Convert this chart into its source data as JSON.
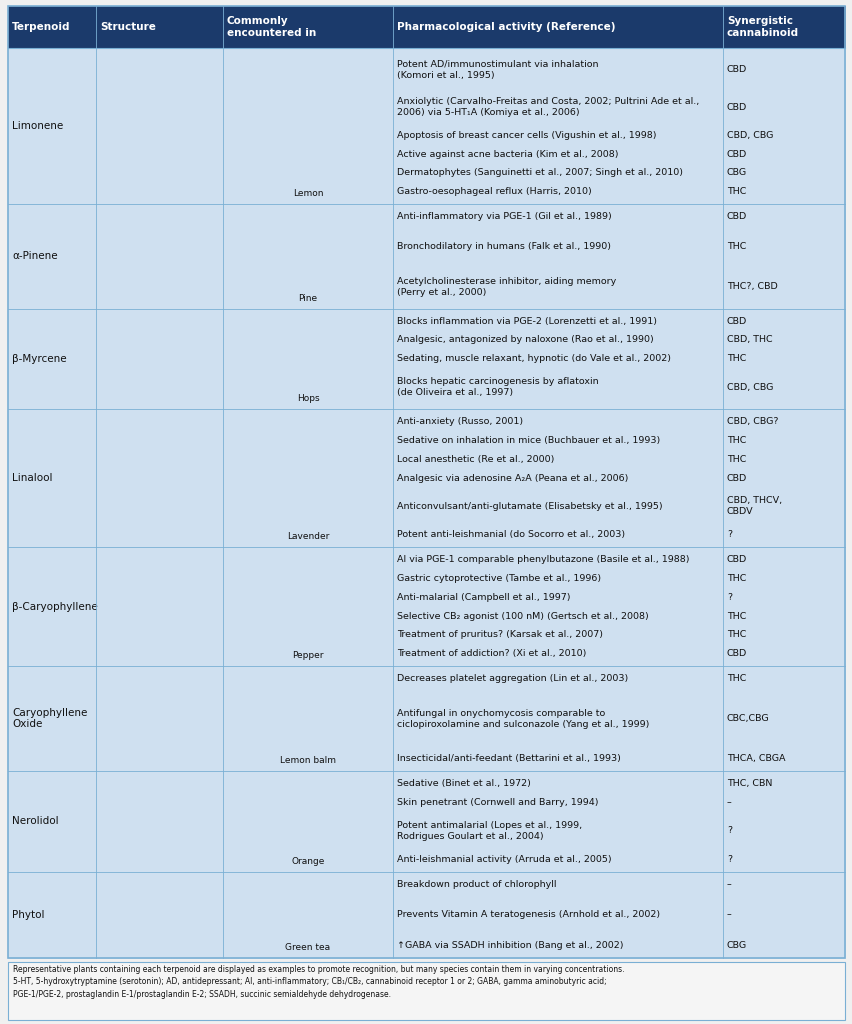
{
  "header_bg": "#1b3a6b",
  "header_text_color": "#ffffff",
  "body_bg": "#cfe0f0",
  "body_text_color": "#111111",
  "border_color": "#7aafd4",
  "footer_bg": "#f5f5f5",
  "headers": [
    "Terpenoid",
    "Structure",
    "Commonly\nencountered in",
    "Pharmacological activity (Reference)",
    "Synergistic\ncannabinoid"
  ],
  "rows": [
    {
      "terpenoid": "Limonene",
      "plant": "Lemon",
      "activities": [
        [
          "Potent AD/immunostimulant via inhalation\n(Komori et al., 1995)",
          "CBD"
        ],
        [
          "Anxiolytic (Carvalho-Freitas and Costa, 2002; Pultrini Ade et al.,\n2006) via 5-HT₁A (Komiya et al., 2006)",
          "CBD"
        ],
        [
          "Apoptosis of breast cancer cells (Vigushin et al., 1998)",
          "CBD, CBG"
        ],
        [
          "Active against acne bacteria (Kim et al., 2008)",
          "CBD"
        ],
        [
          "Dermatophytes (Sanguinetti et al., 2007; Singh et al., 2010)",
          "CBG"
        ],
        [
          "Gastro-oesophageal reflux (Harris, 2010)",
          "THC"
        ]
      ]
    },
    {
      "terpenoid": "α-Pinene",
      "plant": "Pine",
      "activities": [
        [
          "Anti-inflammatory via PGE-1 (Gil et al., 1989)",
          "CBD"
        ],
        [
          "",
          ""
        ],
        [
          "Bronchodilatory in humans (Falk et al., 1990)",
          "THC"
        ],
        [
          "",
          ""
        ],
        [
          "Acetylcholinesterase inhibitor, aiding memory\n(Perry et al., 2000)",
          "THC?, CBD"
        ]
      ]
    },
    {
      "terpenoid": "β-Myrcene",
      "plant": "Hops",
      "activities": [
        [
          "Blocks inflammation via PGE-2 (Lorenzetti et al., 1991)",
          "CBD"
        ],
        [
          "Analgesic, antagonized by naloxone (Rao et al., 1990)",
          "CBD, THC"
        ],
        [
          "Sedating, muscle relaxant, hypnotic (do Vale et al., 2002)",
          "THC"
        ],
        [
          "Blocks hepatic carcinogenesis by aflatoxin\n(de Oliveira et al., 1997)",
          "CBD, CBG"
        ]
      ]
    },
    {
      "terpenoid": "Linalool",
      "plant": "Lavender",
      "activities": [
        [
          "Anti-anxiety (Russo, 2001)",
          "CBD, CBG?"
        ],
        [
          "Sedative on inhalation in mice (Buchbauer et al., 1993)",
          "THC"
        ],
        [
          "Local anesthetic (Re et al., 2000)",
          "THC"
        ],
        [
          "Analgesic via adenosine A₂A (Peana et al., 2006)",
          "CBD"
        ],
        [
          "Anticonvulsant/anti-glutamate (Elisabetsky et al., 1995)",
          "CBD, THCV,\nCBDV"
        ],
        [
          "Potent anti-leishmanial (do Socorro et al., 2003)",
          "?"
        ]
      ]
    },
    {
      "terpenoid": "β-Caryophyllene",
      "plant": "Pepper",
      "activities": [
        [
          "AI via PGE-1 comparable phenylbutazone (Basile et al., 1988)",
          "CBD"
        ],
        [
          "Gastric cytoprotective (Tambe et al., 1996)",
          "THC"
        ],
        [
          "Anti-malarial (Campbell et al., 1997)",
          "?"
        ],
        [
          "Selective CB₂ agonist (100 nM) (Gertsch et al., 2008)",
          "THC"
        ],
        [
          "Treatment of pruritus? (Karsak et al., 2007)",
          "THC"
        ],
        [
          "Treatment of addiction? (Xi et al., 2010)",
          "CBD"
        ]
      ]
    },
    {
      "terpenoid": "Caryophyllene\nOxide",
      "plant": "Lemon balm",
      "activities": [
        [
          "Decreases platelet aggregation (Lin et al., 2003)",
          "THC"
        ],
        [
          "",
          ""
        ],
        [
          "Antifungal in onychomycosis comparable to\nciclopiroxolamine and sulconazole (Yang et al., 1999)",
          "CBC,CBG"
        ],
        [
          "",
          ""
        ],
        [
          "Insecticidal/anti-feedant (Bettarini et al., 1993)",
          "THCA, CBGA"
        ]
      ]
    },
    {
      "terpenoid": "Nerolidol",
      "plant": "Orange",
      "activities": [
        [
          "Sedative (Binet et al., 1972)",
          "THC, CBN"
        ],
        [
          "Skin penetrant (Cornwell and Barry, 1994)",
          "–"
        ],
        [
          "Potent antimalarial (Lopes et al., 1999,\nRodrigues Goulart et al., 2004)",
          "?"
        ],
        [
          "Anti-leishmanial activity (Arruda et al., 2005)",
          "?"
        ]
      ]
    },
    {
      "terpenoid": "Phytol",
      "plant": "Green tea",
      "activities": [
        [
          "Breakdown product of chlorophyll",
          "–"
        ],
        [
          "",
          ""
        ],
        [
          "Prevents Vitamin A teratogenesis (Arnhold et al., 2002)",
          "–"
        ],
        [
          "",
          ""
        ],
        [
          "↑GABA via SSADH inhibition (Bang et al., 2002)",
          "CBG"
        ]
      ]
    }
  ],
  "footer_text": "Representative plants containing each terpenoid are displayed as examples to promote recognition, but many species contain them in varying concentrations.\n5-HT, 5-hydroxytryptamine (serotonin); AD, antidepressant; AI, anti-inflammatory; CB₁/CB₂, cannabinoid receptor 1 or 2; GABA, gamma aminobutyric acid;\nPGE-1/PGE-2, prostaglandin E-1/prostaglandin E-2; SSADH, succinic semialdehyde dehydrogenase."
}
